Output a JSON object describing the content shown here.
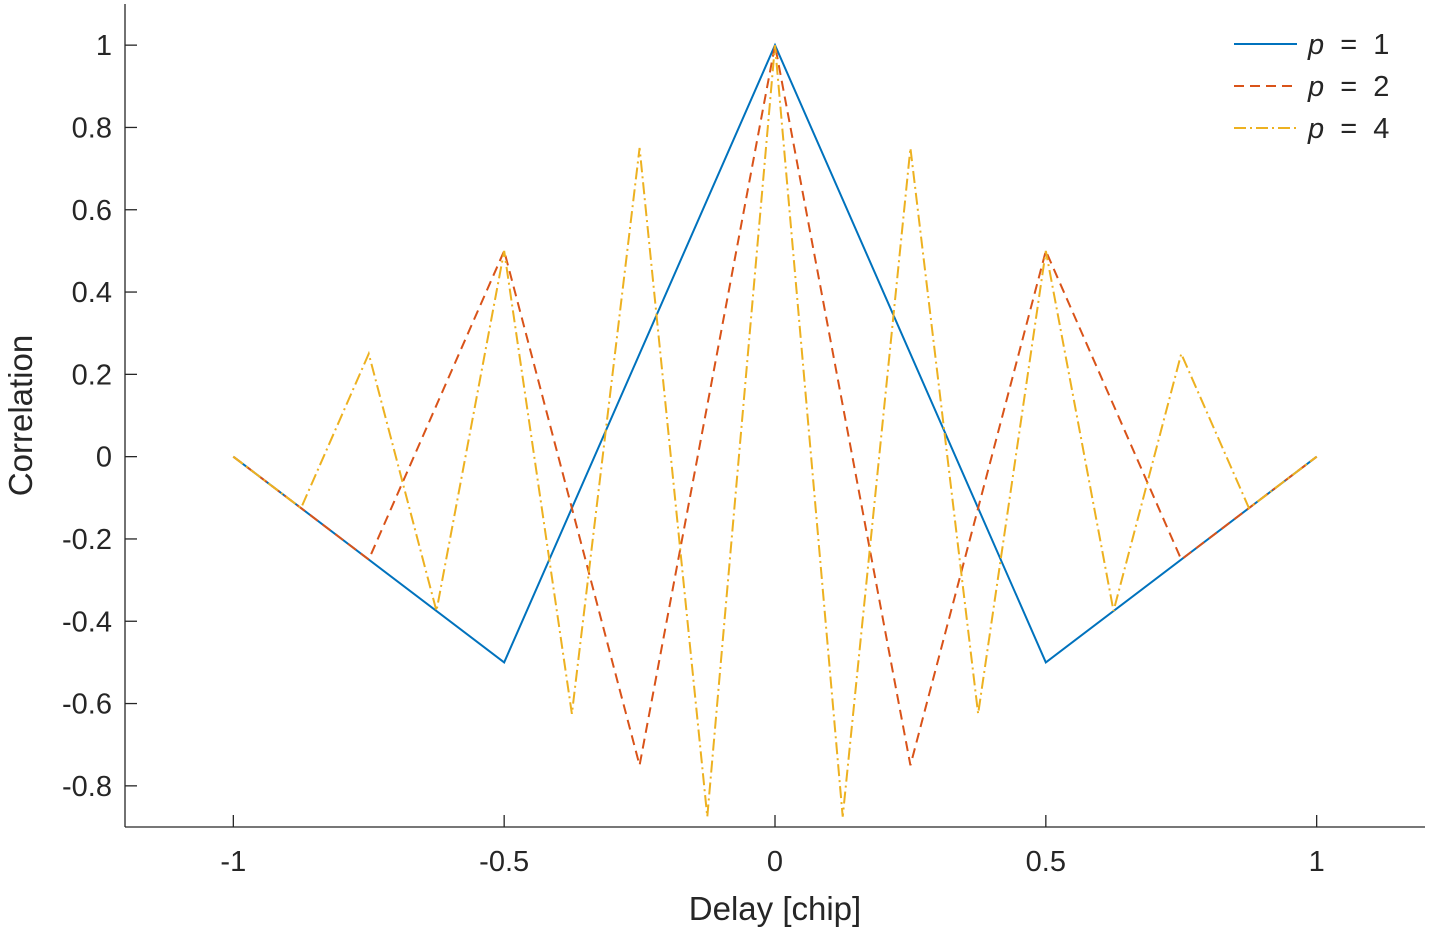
{
  "chart_data": {
    "type": "line",
    "xlabel": "Delay  [chip]",
    "ylabel": "Correlation",
    "xlim": [
      -1.2,
      1.2
    ],
    "ylim": [
      -0.9,
      1.1
    ],
    "xticks": [
      -1,
      -0.5,
      0,
      0.5,
      1
    ],
    "xtick_labels": [
      "-1",
      "-0.5",
      "0",
      "0.5",
      "1"
    ],
    "yticks": [
      -0.8,
      -0.6,
      -0.4,
      -0.2,
      0,
      0.2,
      0.4,
      0.6,
      0.8,
      1
    ],
    "ytick_labels": [
      "-0.8",
      "-0.6",
      "-0.4",
      "-0.2",
      "0",
      "0.2",
      "0.4",
      "0.6",
      "0.8",
      "1"
    ],
    "grid": false,
    "legend_position": "top-right",
    "series": [
      {
        "name": "p  =  1",
        "name_var": "p",
        "name_rest": "  =  1",
        "color": "#0072BD",
        "dash": "solid",
        "x": [
          -1,
          -0.5,
          0,
          0.5,
          1
        ],
        "y": [
          0,
          -0.5,
          1,
          -0.5,
          0
        ]
      },
      {
        "name": "p  =  2",
        "name_var": "p",
        "name_rest": "  =  2",
        "color": "#D95319",
        "dash": "dashed",
        "x": [
          -1,
          -0.75,
          -0.5,
          -0.25,
          0,
          0.25,
          0.5,
          0.75,
          1
        ],
        "y": [
          0,
          -0.25,
          0.5,
          -0.75,
          1,
          -0.75,
          0.5,
          -0.25,
          0
        ]
      },
      {
        "name": "p  =  4",
        "name_var": "p",
        "name_rest": "  =  4",
        "color": "#EDB120",
        "dash": "dashdot",
        "x": [
          -1,
          -0.875,
          -0.75,
          -0.625,
          -0.5,
          -0.375,
          -0.25,
          -0.125,
          0,
          0.125,
          0.25,
          0.375,
          0.5,
          0.625,
          0.75,
          0.875,
          1
        ],
        "y": [
          0,
          -0.125,
          0.25,
          -0.375,
          0.5,
          -0.625,
          0.75,
          -0.875,
          1,
          -0.875,
          0.75,
          -0.625,
          0.5,
          -0.375,
          0.25,
          -0.125,
          0
        ]
      }
    ]
  }
}
